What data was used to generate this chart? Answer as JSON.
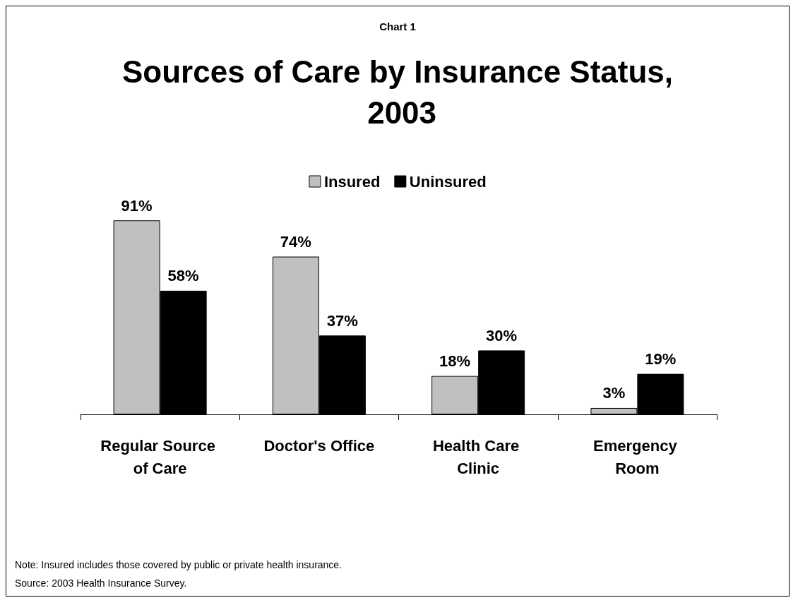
{
  "chart_data": {
    "type": "bar",
    "subtitle": "Chart 1",
    "title": "Sources of Care by Insurance Status, 2003",
    "categories": [
      "Regular Source of Care",
      "Doctor's Office",
      "Health Care Clinic",
      "Emergency Room"
    ],
    "series": [
      {
        "name": "Insured",
        "color": "#c0c0c0",
        "values": [
          91,
          74,
          18,
          3
        ],
        "value_labels": [
          "91%",
          "74%",
          "18%",
          "3%"
        ]
      },
      {
        "name": "Uninsured",
        "color": "#000000",
        "values": [
          58,
          37,
          30,
          19
        ],
        "value_labels": [
          "58%",
          "37%",
          "30%",
          "19%"
        ]
      }
    ],
    "legend": "top",
    "grid": false,
    "annotations": [
      "Note: Insured includes those covered by public or private health insurance.",
      "Source: 2003 Health Insurance Survey."
    ]
  }
}
